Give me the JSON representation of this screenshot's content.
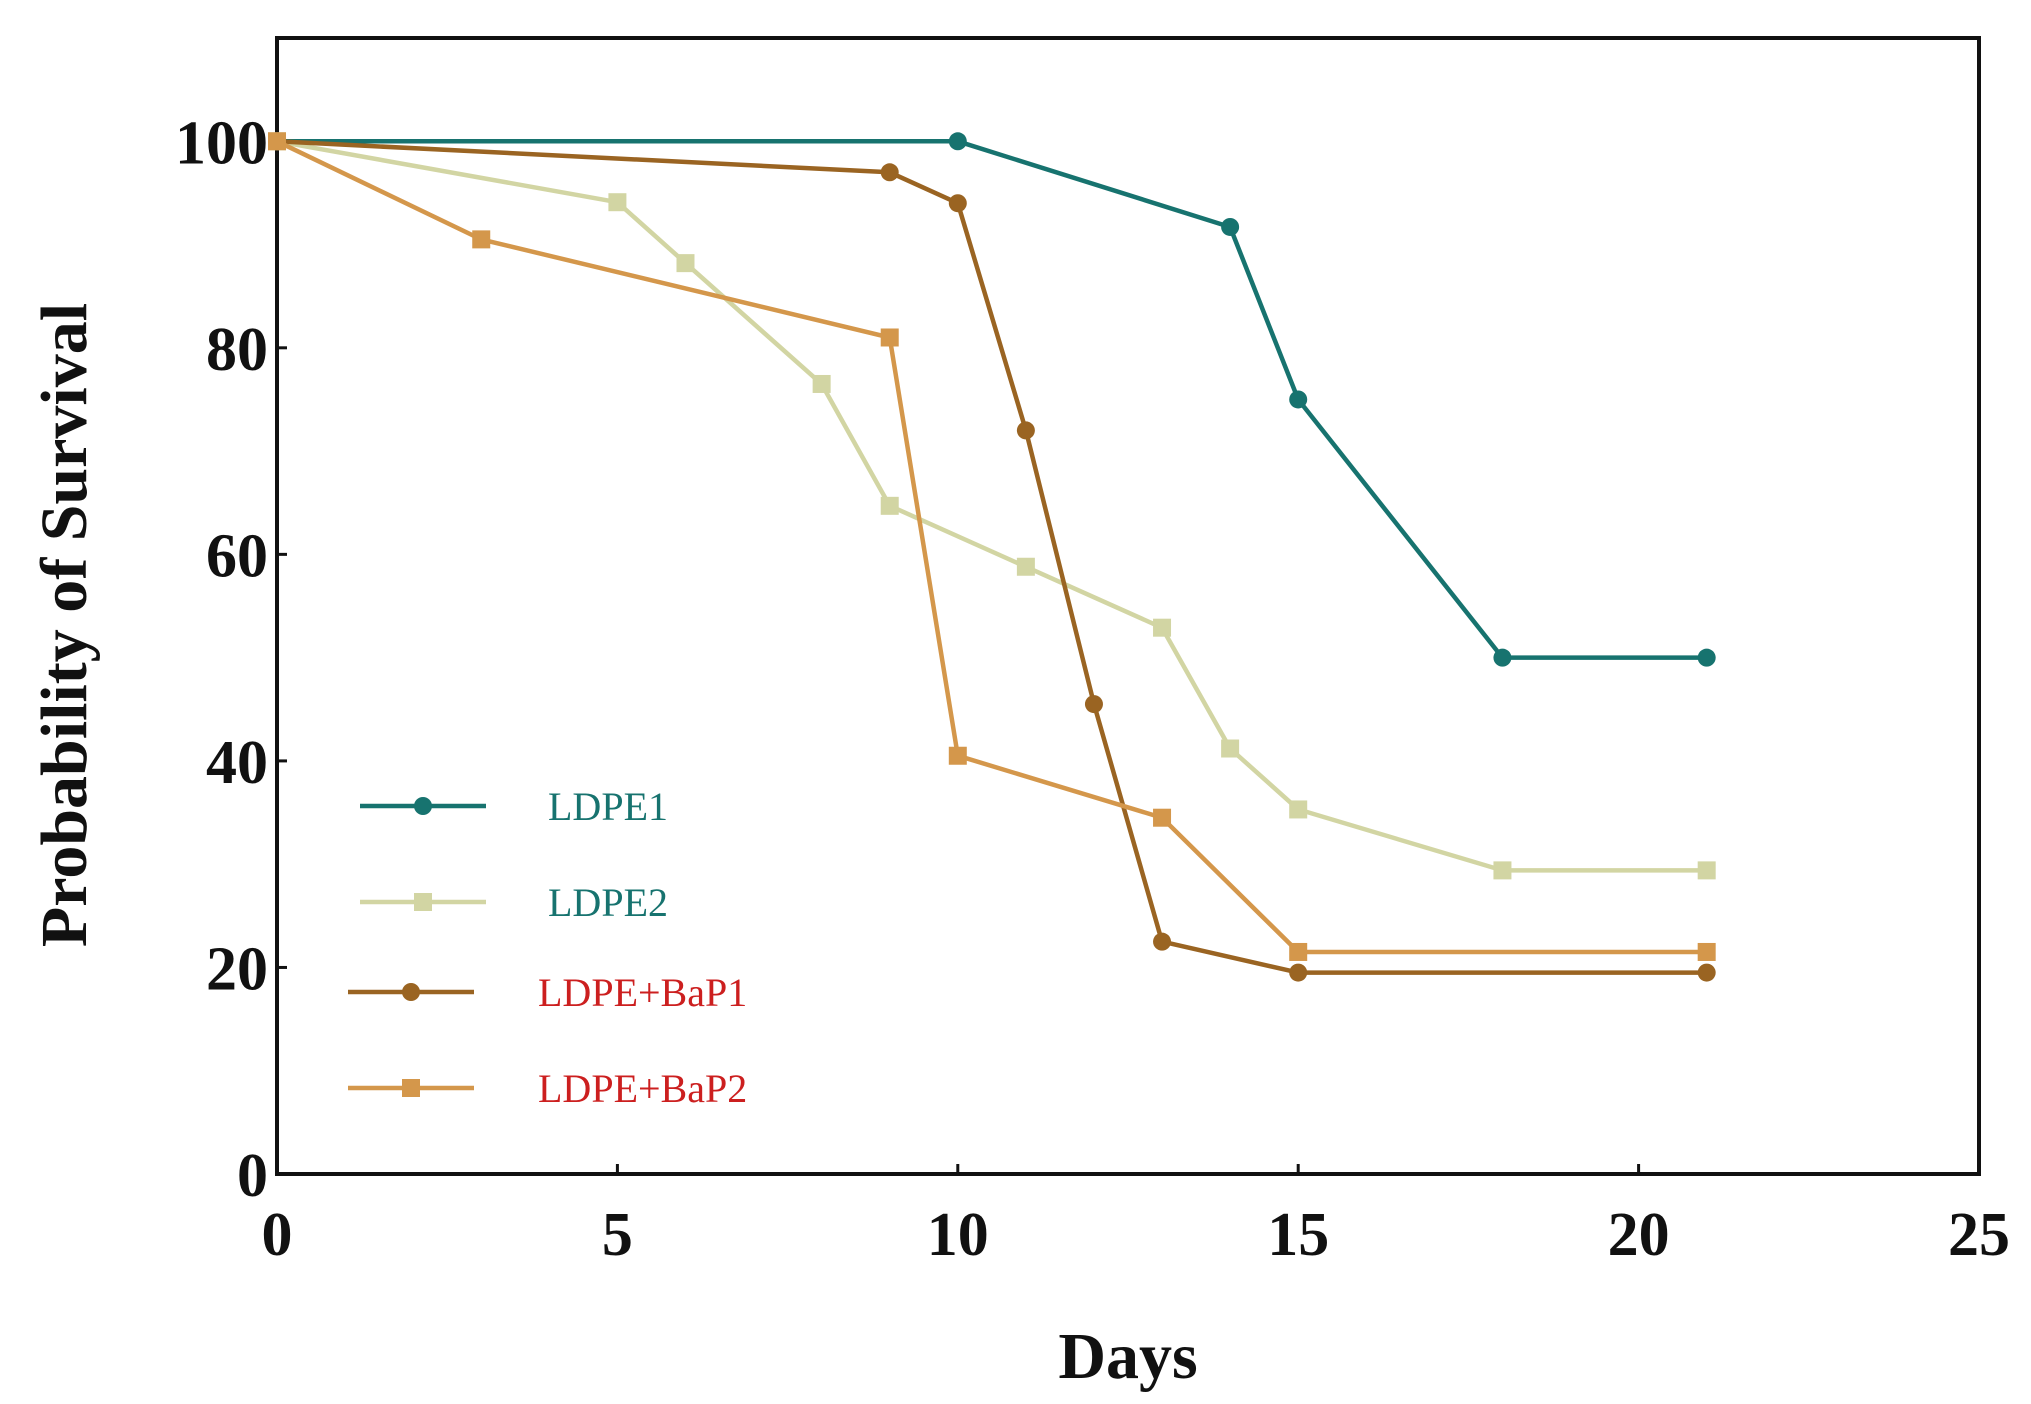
{
  "chart_data": {
    "type": "line",
    "title": "",
    "xlabel": "Days",
    "ylabel": "Probability of Survival",
    "xlim": [
      0,
      25
    ],
    "ylim": [
      0,
      110
    ],
    "xticks": [
      0,
      5,
      10,
      15,
      20,
      25
    ],
    "yticks": [
      0,
      20,
      40,
      60,
      80,
      100
    ],
    "x_tick_labels": [
      "0",
      "5",
      "10",
      "15",
      "20",
      "25"
    ],
    "y_tick_labels": [
      "0",
      "20",
      "40",
      "60",
      "80",
      "100"
    ],
    "grid": false,
    "legend_position": "lower-left",
    "series": [
      {
        "name": "LDPE1",
        "color": "#17736f",
        "label_color": "#17736f",
        "marker": "circle",
        "x": [
          0,
          10,
          14,
          15,
          18,
          21
        ],
        "y": [
          100,
          100,
          91.7,
          75,
          50,
          50
        ]
      },
      {
        "name": "LDPE2",
        "color": "#d2d5a3",
        "label_color": "#17736f",
        "marker": "square",
        "x": [
          0,
          5,
          6,
          8,
          9,
          11,
          13,
          14,
          15,
          18,
          21
        ],
        "y": [
          100,
          94.1,
          88.2,
          76.5,
          64.7,
          58.8,
          52.9,
          41.2,
          35.3,
          29.4,
          29.4
        ]
      },
      {
        "name": "LDPE+BaP1",
        "color": "#9a6422",
        "label_color": "#cc1f1f",
        "marker": "circle",
        "x": [
          0,
          9,
          10,
          11,
          12,
          13,
          15,
          21
        ],
        "y": [
          100,
          97,
          94,
          72,
          45.5,
          22.5,
          19.5,
          19.5
        ]
      },
      {
        "name": "LDPE+BaP2",
        "color": "#d4974b",
        "label_color": "#cc1f1f",
        "marker": "square",
        "x": [
          0,
          3,
          9,
          10,
          13,
          15,
          21
        ],
        "y": [
          100,
          90.5,
          81,
          40.5,
          34.5,
          21.5,
          21.5
        ]
      }
    ]
  }
}
